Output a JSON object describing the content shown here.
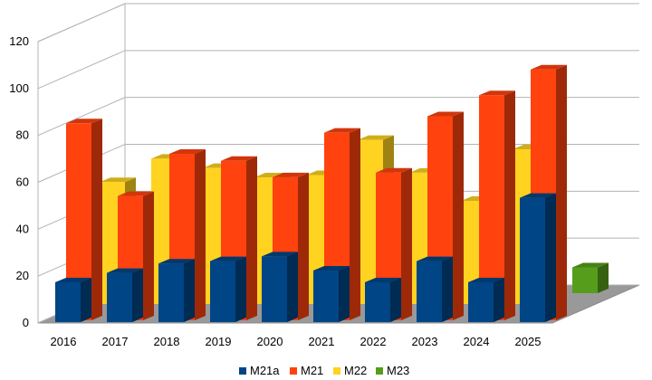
{
  "chart_data": {
    "type": "bar",
    "variant": "3d-grouped-depth",
    "categories": [
      "2016",
      "2017",
      "2018",
      "2019",
      "2020",
      "2021",
      "2022",
      "2023",
      "2024",
      "2025"
    ],
    "ylim": [
      0,
      120
    ],
    "yticks": [
      "0",
      "20",
      "40",
      "60",
      "80",
      "100",
      "120"
    ],
    "grid": true,
    "legend_position": "bottom",
    "series": [
      {
        "name": "M21a",
        "color": "#004586",
        "values": [
          17,
          21,
          25,
          26,
          28,
          22,
          17,
          26,
          17,
          53
        ]
      },
      {
        "name": "M21",
        "color": "#ff420e",
        "values": [
          84,
          53,
          71,
          68,
          61,
          80,
          63,
          87,
          96,
          107
        ]
      },
      {
        "name": "M22",
        "color": "#ffd320",
        "values": [
          52,
          62,
          58,
          54,
          55,
          70,
          56,
          44,
          66,
          null
        ]
      },
      {
        "name": "M23",
        "color": "#579d1c",
        "values": [
          null,
          null,
          null,
          null,
          null,
          null,
          null,
          null,
          null,
          11
        ]
      }
    ]
  }
}
